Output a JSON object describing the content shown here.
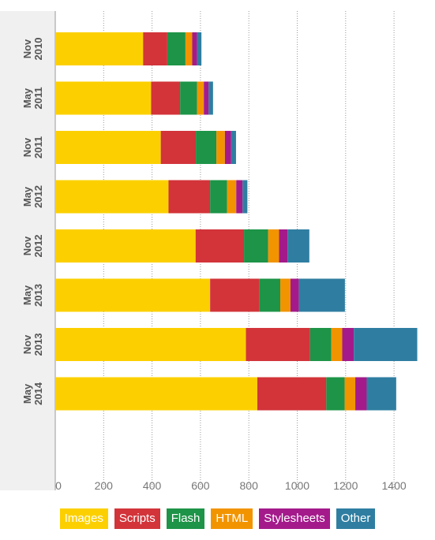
{
  "chart_data": {
    "type": "bar",
    "orientation": "horizontal",
    "stacked": true,
    "title": "",
    "xlabel": "",
    "ylabel": "",
    "xlim": [
      0,
      1500
    ],
    "x_ticks": [
      0,
      200,
      400,
      600,
      800,
      1000,
      1200,
      1400
    ],
    "grid": "vertical dotted",
    "legend_position": "bottom",
    "categories": [
      [
        "Nov",
        "2010"
      ],
      [
        "May",
        "2011"
      ],
      [
        "Nov",
        "2011"
      ],
      [
        "May",
        "2012"
      ],
      [
        "Nov",
        "2012"
      ],
      [
        "May",
        "2013"
      ],
      [
        "Nov",
        "2013"
      ],
      [
        "May",
        "2014"
      ]
    ],
    "series": [
      {
        "name": "Images",
        "color": "#fcd000",
        "values": [
          363,
          396,
          436,
          468,
          580,
          640,
          788,
          835
        ]
      },
      {
        "name": "Scripts",
        "color": "#d2343a",
        "values": [
          100,
          120,
          145,
          172,
          200,
          204,
          265,
          285
        ]
      },
      {
        "name": "Flash",
        "color": "#1d9447",
        "values": [
          75,
          70,
          85,
          70,
          100,
          86,
          88,
          76
        ]
      },
      {
        "name": "HTML",
        "color": "#f29400",
        "values": [
          28,
          28,
          35,
          38,
          45,
          42,
          45,
          44
        ]
      },
      {
        "name": "Stylesheets",
        "color": "#a41a8b",
        "values": [
          20,
          20,
          26,
          26,
          35,
          35,
          48,
          47
        ]
      },
      {
        "name": "Other",
        "color": "#2f7ea1",
        "values": [
          18,
          18,
          20,
          20,
          90,
          190,
          262,
          122
        ]
      }
    ]
  }
}
